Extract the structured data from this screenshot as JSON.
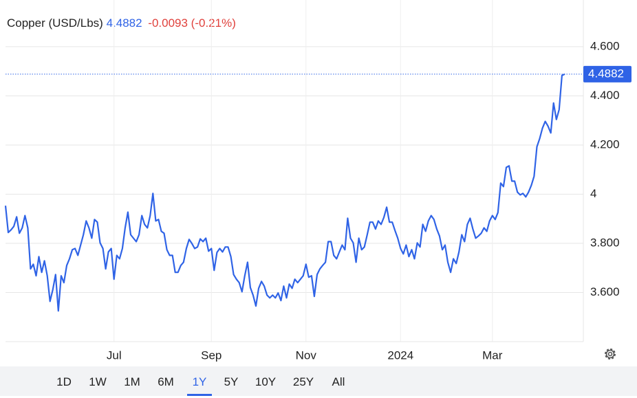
{
  "header": {
    "instrument": "Copper (USD/Lbs)",
    "price": "4.4882",
    "change": "-0.0093 (-0.21%)"
  },
  "chart_data": {
    "type": "line",
    "color": "#2f63e6",
    "values": [
      3.953,
      3.844,
      3.855,
      3.869,
      3.908,
      3.841,
      3.863,
      3.913,
      3.863,
      3.696,
      3.715,
      3.668,
      3.746,
      3.682,
      3.729,
      3.668,
      3.564,
      3.612,
      3.673,
      3.525,
      3.668,
      3.64,
      3.71,
      3.737,
      3.774,
      3.779,
      3.751,
      3.793,
      3.835,
      3.891,
      3.863,
      3.821,
      3.897,
      3.886,
      3.802,
      3.779,
      3.696,
      3.765,
      3.779,
      3.654,
      3.751,
      3.737,
      3.779,
      3.863,
      3.927,
      3.835,
      3.821,
      3.807,
      3.835,
      3.913,
      3.877,
      3.863,
      3.913,
      4.003,
      3.891,
      3.897,
      3.849,
      3.841,
      3.774,
      3.751,
      3.751,
      3.682,
      3.682,
      3.71,
      3.723,
      3.779,
      3.816,
      3.799,
      3.779,
      3.785,
      3.818,
      3.807,
      3.821,
      3.768,
      3.779,
      3.69,
      3.763,
      3.779,
      3.765,
      3.785,
      3.785,
      3.746,
      3.673,
      3.654,
      3.64,
      3.603,
      3.668,
      3.723,
      3.62,
      3.589,
      3.545,
      3.617,
      3.645,
      3.626,
      3.589,
      3.578,
      3.589,
      3.578,
      3.598,
      3.567,
      3.626,
      3.578,
      3.634,
      3.617,
      3.654,
      3.64,
      3.654,
      3.668,
      3.715,
      3.662,
      3.668,
      3.584,
      3.673,
      3.696,
      3.71,
      3.723,
      3.807,
      3.807,
      3.751,
      3.737,
      3.765,
      3.793,
      3.774,
      3.902,
      3.821,
      3.802,
      3.723,
      3.821,
      3.774,
      3.785,
      3.835,
      3.886,
      3.886,
      3.858,
      3.891,
      3.877,
      3.905,
      3.947,
      3.886,
      3.886,
      3.852,
      3.821,
      3.779,
      3.757,
      3.793,
      3.746,
      3.774,
      3.737,
      3.802,
      3.785,
      3.877,
      3.849,
      3.891,
      3.913,
      3.897,
      3.858,
      3.83,
      3.774,
      3.793,
      3.723,
      3.682,
      3.737,
      3.718,
      3.765,
      3.835,
      3.807,
      3.877,
      3.902,
      3.858,
      3.821,
      3.83,
      3.841,
      3.863,
      3.849,
      3.891,
      3.913,
      3.897,
      3.925,
      4.045,
      4.031,
      4.109,
      4.115,
      4.053,
      4.053,
      4.008,
      3.997,
      4.003,
      3.989,
      4.008,
      4.036,
      4.073,
      4.193,
      4.226,
      4.268,
      4.296,
      4.277,
      4.249,
      4.371,
      4.304,
      4.344,
      4.483,
      4.4882
    ],
    "xlim": [
      0,
      207.7
    ],
    "xticks": [
      {
        "value": 39,
        "label": "Jul"
      },
      {
        "value": 74,
        "label": "Sep"
      },
      {
        "value": 108,
        "label": "Nov"
      },
      {
        "value": 142,
        "label": "2024"
      },
      {
        "value": 175,
        "label": "Mar"
      }
    ],
    "ylim": [
      3.4,
      4.79
    ],
    "yticks": [
      {
        "value": 3.6,
        "label": "3.600"
      },
      {
        "value": 3.8,
        "label": "3.800"
      },
      4,
      {
        "value": 4.2,
        "label": "4.200"
      },
      {
        "value": 4.4,
        "label": "4.400"
      },
      {
        "value": 4.6,
        "label": "4.600"
      }
    ],
    "grid": true
  },
  "ranges": [
    "1D",
    "1W",
    "1M",
    "6M",
    "1Y",
    "5Y",
    "10Y",
    "25Y",
    "All"
  ],
  "selected_range": "1Y"
}
